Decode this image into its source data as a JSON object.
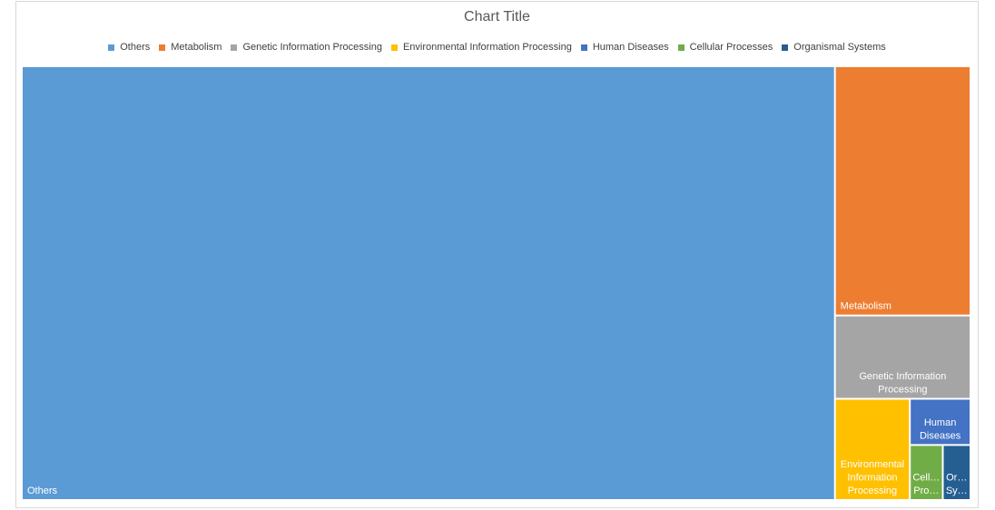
{
  "chart_data": {
    "type": "treemap",
    "title": "Chart Title",
    "legend_position": "top",
    "categories": [
      "Others",
      "Metabolism",
      "Genetic Information Processing",
      "Environmental Information Processing",
      "Human Diseases",
      "Cellular Processes",
      "Organismal Systems"
    ],
    "values": [
      428000,
      41000,
      13700,
      9200,
      3400,
      2200,
      1850
    ],
    "colors": [
      "#5b9bd5",
      "#ed7d31",
      "#a5a5a5",
      "#ffc000",
      "#4472c4",
      "#70ad47",
      "#255e91"
    ],
    "tile_labels": [
      [
        "Others"
      ],
      [
        "Metabolism"
      ],
      [
        "Genetic Information",
        "Processing"
      ],
      [
        "Environmental",
        "Information",
        "Processing"
      ],
      [
        "Human",
        "Diseases"
      ],
      [
        "Cell…",
        "Pro…"
      ],
      [
        "Or…",
        "Sy…"
      ]
    ]
  }
}
